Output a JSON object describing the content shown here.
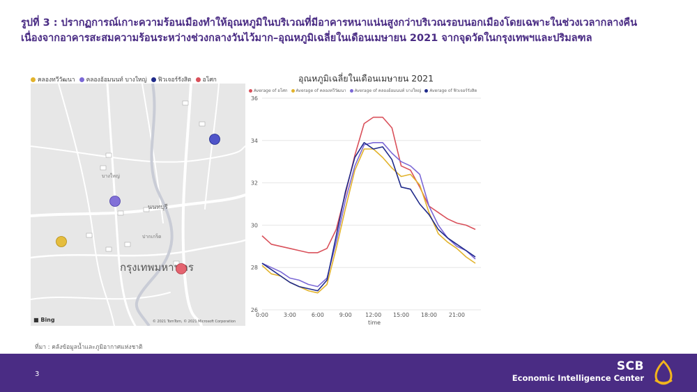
{
  "slide": {
    "title": "รูปที่ 3 : ปรากฏการณ์เกาะความร้อนเมืองทำให้อุณหภูมิในบริเวณที่มีอาคารหนาแน่นสูงกว่าบริเวณรอบนอกเมืองโดยเฉพาะในช่วงเวลากลางคืน เนื่องจากอาคารสะสมความร้อนระหว่างช่วงกลางวันไว้มาก–อุณหภูมิเฉลี่ยในเดือนเมษายน 2021 จากจุดวัดในกรุงเทพฯและปริมลฑล",
    "source": "ที่มา : คลังข้อมูลน้ำและภูมิอากาศแห่งชาติ",
    "page_number": "3"
  },
  "map": {
    "legend": [
      {
        "label": "คลองทวีวัฒนา",
        "color": "#e2b32c"
      },
      {
        "label": "คลองอ้อมนนท์ บางใหญ่",
        "color": "#7b68d6"
      },
      {
        "label": "ฟิวเจอร์รังสิต",
        "color": "#1f2a8a"
      },
      {
        "label": "อโศก",
        "color": "#d9505a"
      }
    ],
    "labels": {
      "city": "กรุงเทพมหานคร",
      "nonthaburi": "นนทบุรี",
      "bangyai": "บางใหญ่",
      "pakkret": "ปากเกร็ด"
    },
    "attribution": "© 2021 TomTom, © 2021 Microsoft Corporation",
    "provider": "Bing",
    "icons": [
      "bing-logo-icon"
    ]
  },
  "chart_data": {
    "type": "line",
    "title": "อุณหภูมิเฉลี่ยในเดือนเมษายน 2021",
    "xlabel": "time",
    "ylabel": "",
    "x": [
      0,
      1,
      2,
      3,
      4,
      5,
      6,
      7,
      8,
      9,
      10,
      11,
      12,
      13,
      14,
      15,
      16,
      17,
      18,
      19,
      20,
      21,
      22,
      23
    ],
    "x_ticks": [
      "0:00",
      "3:00",
      "6:00",
      "9:00",
      "12:00",
      "15:00",
      "18:00",
      "21:00"
    ],
    "x_tick_values": [
      0,
      3,
      6,
      9,
      12,
      15,
      18,
      21
    ],
    "ylim": [
      26,
      36
    ],
    "y_ticks": [
      26,
      28,
      30,
      32,
      34,
      36
    ],
    "grid": "horizontal",
    "legend_position": "top",
    "series": [
      {
        "name": "Average of อโศก",
        "color": "#d9505a",
        "values": [
          29.5,
          29.1,
          29.0,
          28.9,
          28.8,
          28.7,
          28.7,
          28.9,
          29.8,
          31.5,
          33.3,
          34.8,
          35.1,
          35.1,
          34.6,
          32.8,
          32.6,
          31.8,
          30.9,
          30.6,
          30.3,
          30.1,
          30.0,
          29.8
        ]
      },
      {
        "name": "Average of คลองทวีวัฒนา",
        "color": "#e2b32c",
        "values": [
          28.1,
          27.7,
          27.6,
          27.3,
          27.1,
          26.9,
          26.8,
          27.2,
          28.9,
          30.8,
          32.6,
          33.6,
          33.6,
          33.2,
          32.7,
          32.3,
          32.4,
          31.9,
          30.6,
          29.6,
          29.2,
          28.9,
          28.5,
          28.2
        ]
      },
      {
        "name": "Average of คลองอ้อมนนท์ บางใหญ่",
        "color": "#7b68d6",
        "values": [
          28.2,
          28.0,
          27.8,
          27.5,
          27.4,
          27.2,
          27.1,
          27.5,
          29.2,
          31.2,
          32.8,
          33.8,
          33.9,
          33.9,
          33.4,
          33.0,
          32.8,
          32.4,
          30.9,
          30.0,
          29.4,
          29.0,
          28.8,
          28.4
        ]
      },
      {
        "name": "Average of ฟิวเจอร์รังสิต",
        "color": "#1f2a8a",
        "values": [
          28.2,
          27.9,
          27.6,
          27.3,
          27.1,
          27.0,
          26.9,
          27.4,
          29.5,
          31.6,
          33.2,
          33.9,
          33.6,
          33.7,
          33.1,
          31.8,
          31.7,
          31.0,
          30.5,
          29.8,
          29.4,
          29.1,
          28.8,
          28.5
        ]
      }
    ]
  },
  "footer": {
    "brand": "SCB",
    "unit": "Economic Intelligence Center",
    "logo_icon": "scb-logo-icon"
  }
}
